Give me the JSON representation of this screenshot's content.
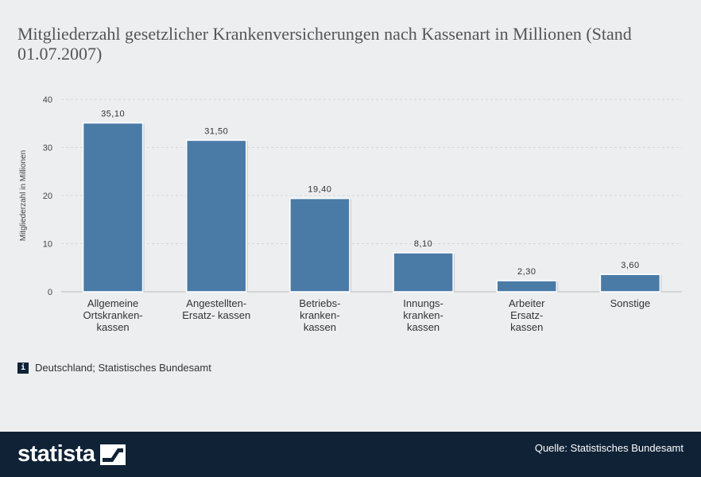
{
  "title": "Mitgliederzahl gesetzlicher Krankenversicherungen nach Kassenart in Millionen (Stand 01.07.2007)",
  "source_note": "Deutschland; Statistisches Bundesamt",
  "footer": {
    "brand": "statista",
    "quelle": "Quelle: Statistisches Bundesamt"
  },
  "colors": {
    "bar": "#4a7ba6",
    "footer": "#0f2236",
    "background": "#eceef0"
  },
  "chart_data": {
    "type": "bar",
    "categories": [
      "Allgemeine\nOrtskranken-\nkassen",
      "Angestellten-\nErsatz- kassen",
      "Betriebs-\nkranken-\nkassen",
      "Innungs-\nkranken-\nkassen",
      "Arbeiter\nErsatz-\nkassen",
      "Sonstige"
    ],
    "values": [
      35.1,
      31.5,
      19.4,
      8.1,
      2.3,
      3.6
    ],
    "value_labels": [
      "35,10",
      "31,50",
      "19,40",
      "8,10",
      "2,30",
      "3,60"
    ],
    "ylabel": "Mitgliederzahl in Millionen",
    "ylim": [
      0,
      40
    ],
    "yticks": [
      "0",
      "10",
      "20",
      "30",
      "40"
    ],
    "grid": true,
    "legend": "none"
  }
}
